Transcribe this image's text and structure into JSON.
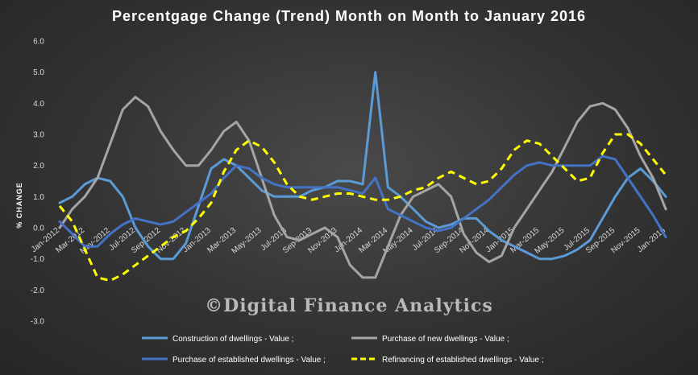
{
  "chart_data": {
    "type": "line",
    "title": "Percentgage Change (Trend) Month on Month to January 2016",
    "xlabel": "",
    "ylabel": "% CHANGE",
    "ylim": [
      -3.0,
      6.0
    ],
    "y_ticks": [
      "6.0",
      "5.0",
      "4.0",
      "3.0",
      "2.0",
      "1.0",
      "0.0",
      "-1.0",
      "-2.0",
      "-3.0"
    ],
    "grid": false,
    "legend_position": "bottom",
    "watermark": "©Digital Finance Analytics",
    "categories": [
      "Jan-2012",
      "Feb-2012",
      "Mar-2012",
      "Apr-2012",
      "May-2012",
      "Jun-2012",
      "Jul-2012",
      "Aug-2012",
      "Sep-2012",
      "Oct-2012",
      "Nov-2012",
      "Dec-2012",
      "Jan-2013",
      "Feb-2013",
      "Mar-2013",
      "Apr-2013",
      "May-2013",
      "Jun-2013",
      "Jul-2013",
      "Aug-2013",
      "Sep-2013",
      "Oct-2013",
      "Nov-2013",
      "Dec-2013",
      "Jan-2014",
      "Feb-2014",
      "Mar-2014",
      "Apr-2014",
      "May-2014",
      "Jun-2014",
      "Jul-2014",
      "Aug-2014",
      "Sep-2014",
      "Oct-2014",
      "Nov-2014",
      "Dec-2014",
      "Jan-2015",
      "Feb-2015",
      "Mar-2015",
      "Apr-2015",
      "May-2015",
      "Jun-2015",
      "Jul-2015",
      "Aug-2015",
      "Sep-2015",
      "Oct-2015",
      "Nov-2015",
      "Dec-2015",
      "Jan-2016"
    ],
    "tick_labels": [
      {
        "index": 0,
        "label": "Jan-2012"
      },
      {
        "index": 2,
        "label": "Mar-2012"
      },
      {
        "index": 4,
        "label": "May-2012"
      },
      {
        "index": 6,
        "label": "Jul-2012"
      },
      {
        "index": 8,
        "label": "Sep-2012"
      },
      {
        "index": 10,
        "label": "Nov-2012"
      },
      {
        "index": 12,
        "label": "Jan-2013"
      },
      {
        "index": 14,
        "label": "Mar-2013"
      },
      {
        "index": 16,
        "label": "May-2013"
      },
      {
        "index": 18,
        "label": "Jul-2013"
      },
      {
        "index": 20,
        "label": "Sep-2013"
      },
      {
        "index": 22,
        "label": "Nov-2013"
      },
      {
        "index": 24,
        "label": "Jan-2014"
      },
      {
        "index": 26,
        "label": "Mar-2014"
      },
      {
        "index": 28,
        "label": "May-2014"
      },
      {
        "index": 30,
        "label": "Jul-2014"
      },
      {
        "index": 32,
        "label": "Sep-2014"
      },
      {
        "index": 34,
        "label": "Nov-2014"
      },
      {
        "index": 36,
        "label": "Jan-2015"
      },
      {
        "index": 38,
        "label": "Mar-2015"
      },
      {
        "index": 40,
        "label": "May-2015"
      },
      {
        "index": 42,
        "label": "Jul-2015"
      },
      {
        "index": 44,
        "label": "Sep-2015"
      },
      {
        "index": 46,
        "label": "Nov-2015"
      },
      {
        "index": 48,
        "label": "Jan-2016"
      }
    ],
    "series": [
      {
        "name": "Construction of dwellings - Value ;",
        "color": "#5b9bd5",
        "style": "solid",
        "values": [
          0.8,
          1.0,
          1.4,
          1.6,
          1.5,
          1.0,
          0.0,
          -0.6,
          -1.0,
          -1.0,
          -0.5,
          0.7,
          1.9,
          2.2,
          2.0,
          1.6,
          1.2,
          1.0,
          1.0,
          1.0,
          1.2,
          1.3,
          1.5,
          1.5,
          1.4,
          5.0,
          1.3,
          1.0,
          0.6,
          0.2,
          0.0,
          0.1,
          0.3,
          0.3,
          -0.1,
          -0.4,
          -0.6,
          -0.8,
          -1.0,
          -1.0,
          -0.9,
          -0.7,
          -0.4,
          0.3,
          1.0,
          1.6,
          1.9,
          1.5,
          1.0
        ]
      },
      {
        "name": "Purchase of new dwellings - Value ;",
        "color": "#a5a5a5",
        "style": "solid",
        "values": [
          0.0,
          0.6,
          1.0,
          1.6,
          2.7,
          3.8,
          4.2,
          3.9,
          3.1,
          2.5,
          2.0,
          2.0,
          2.5,
          3.1,
          3.4,
          2.8,
          1.6,
          0.4,
          -0.3,
          -0.4,
          -0.2,
          0.0,
          -0.3,
          -1.2,
          -1.6,
          -1.6,
          -0.6,
          0.4,
          1.0,
          1.2,
          1.4,
          1.0,
          -0.2,
          -0.8,
          -1.1,
          -0.9,
          0.0,
          0.6,
          1.2,
          1.8,
          2.6,
          3.4,
          3.9,
          4.0,
          3.8,
          3.2,
          2.3,
          1.6,
          0.6
        ]
      },
      {
        "name": "Purchase of established dwellings - Value ;",
        "color": "#4472c4",
        "style": "solid",
        "values": [
          0.2,
          -0.2,
          -0.6,
          -0.6,
          -0.2,
          0.1,
          0.3,
          0.2,
          0.1,
          0.2,
          0.5,
          0.8,
          1.1,
          1.6,
          2.0,
          1.9,
          1.6,
          1.4,
          1.3,
          1.3,
          1.3,
          1.3,
          1.3,
          1.2,
          1.1,
          1.6,
          0.6,
          0.4,
          0.2,
          0.0,
          -0.1,
          0.0,
          0.3,
          0.6,
          0.9,
          1.3,
          1.7,
          2.0,
          2.1,
          2.0,
          2.0,
          2.0,
          2.0,
          2.3,
          2.2,
          1.6,
          1.0,
          0.4,
          -0.3
        ]
      },
      {
        "name": "Refinancing of established dwellings - Value ;",
        "color": "#ffff00",
        "style": "dashed",
        "values": [
          0.7,
          0.2,
          -0.7,
          -1.6,
          -1.7,
          -1.5,
          -1.2,
          -0.9,
          -0.6,
          -0.3,
          -0.1,
          0.3,
          0.8,
          1.8,
          2.5,
          2.8,
          2.6,
          2.1,
          1.4,
          1.0,
          0.9,
          1.0,
          1.1,
          1.1,
          1.0,
          0.9,
          0.9,
          1.0,
          1.2,
          1.3,
          1.6,
          1.8,
          1.6,
          1.4,
          1.5,
          1.9,
          2.5,
          2.8,
          2.7,
          2.3,
          1.9,
          1.5,
          1.6,
          2.4,
          3.0,
          3.0,
          2.7,
          2.2,
          1.7
        ]
      }
    ]
  }
}
